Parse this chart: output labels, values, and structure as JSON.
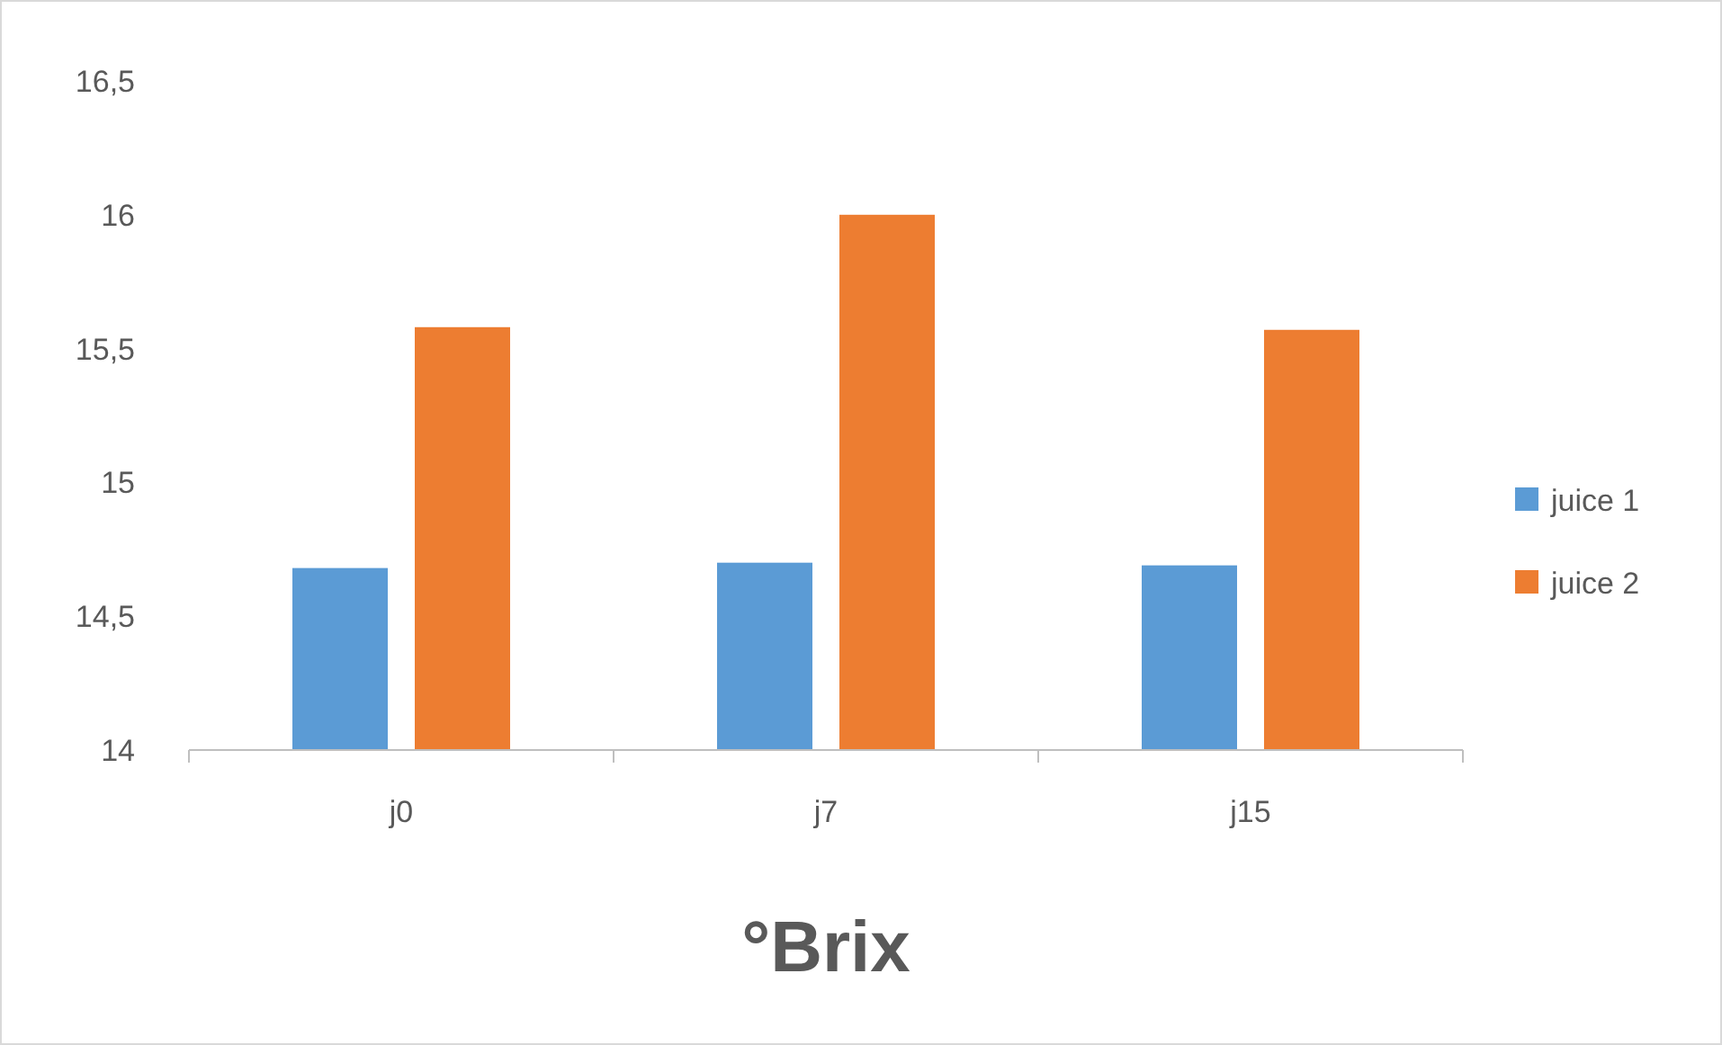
{
  "chart_data": {
    "type": "bar",
    "title": "°Brix",
    "categories": [
      "j0",
      "j7",
      "j15"
    ],
    "series": [
      {
        "name": "juice 1",
        "color": "#5b9bd5",
        "values": [
          14.68,
          14.7,
          14.69
        ]
      },
      {
        "name": "juice 2",
        "color": "#ed7d31",
        "values": [
          15.58,
          16.0,
          15.57
        ]
      }
    ],
    "ylim": [
      14,
      16.5
    ],
    "yticks": [
      14,
      {
        "value": 14.5,
        "label": "14,5"
      },
      15,
      {
        "value": 15.5,
        "label": "15,5"
      },
      16,
      {
        "value": 16.5,
        "label": "16,5"
      }
    ],
    "grid": false,
    "legend": "right"
  }
}
